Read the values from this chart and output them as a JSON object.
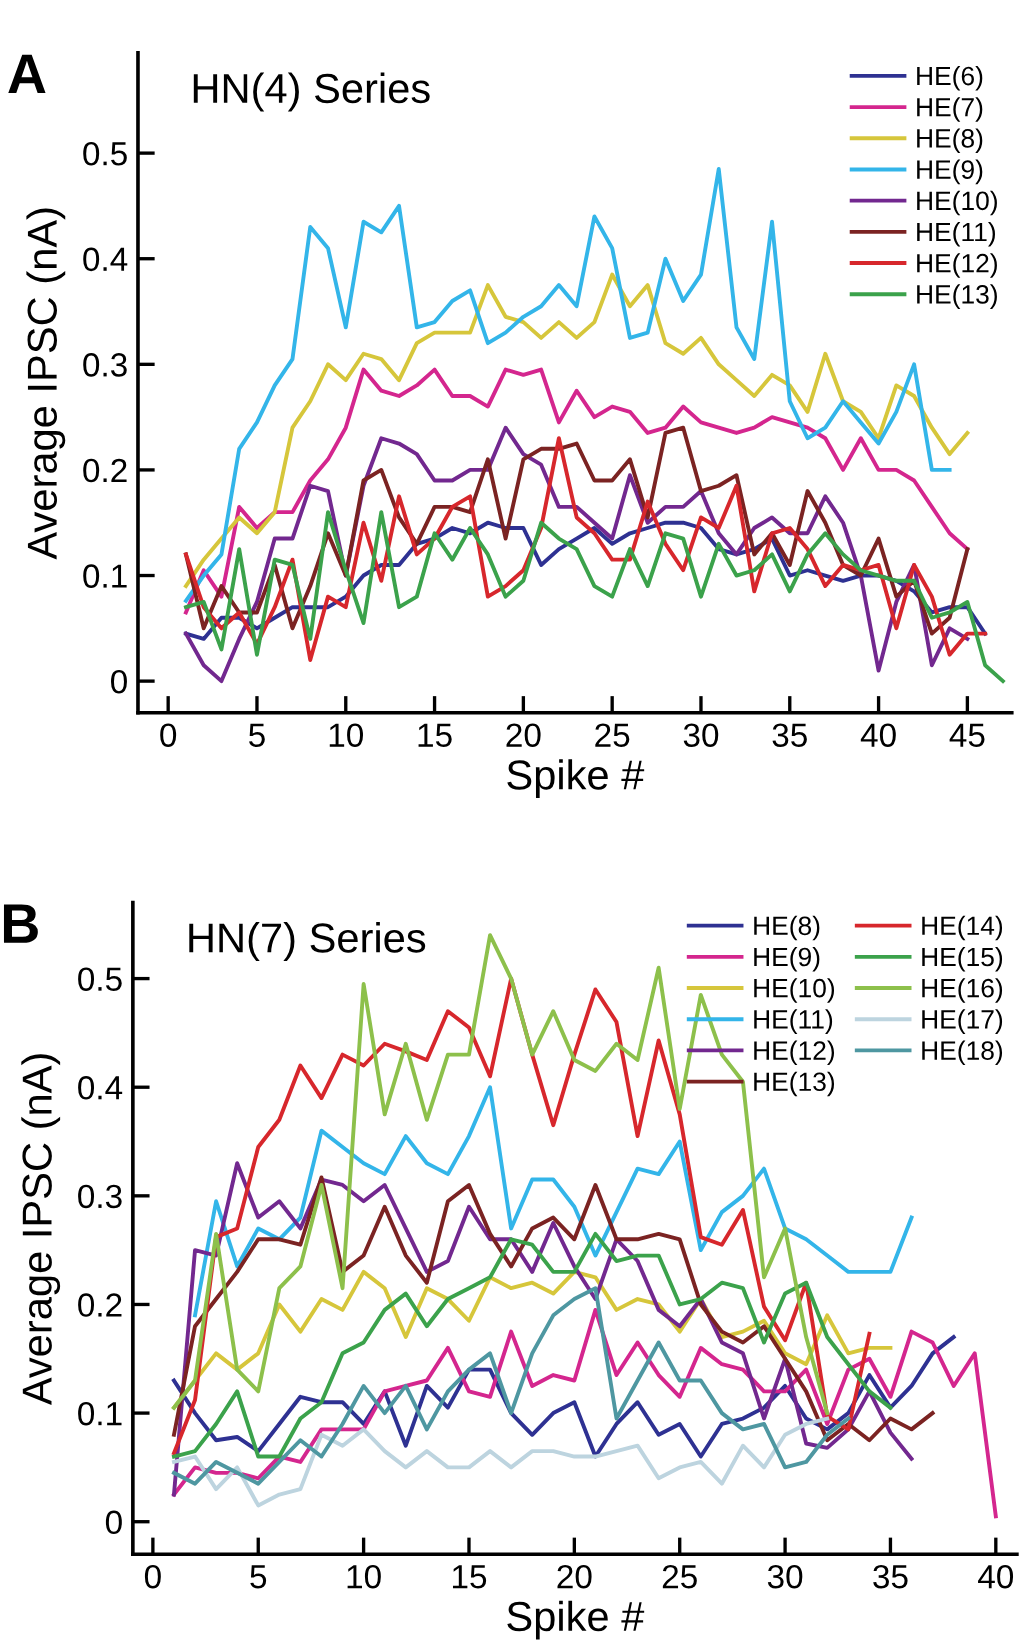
{
  "chart_data": [
    {
      "type": "line",
      "title": "A",
      "subtitle": "HN(4) Series",
      "xlabel": "Spike #",
      "ylabel": "Average IPSC (nA)",
      "xlim": [
        -1.7,
        47.5
      ],
      "ylim": [
        -0.03,
        0.595
      ],
      "xticks": [
        0,
        5,
        10,
        15,
        20,
        25,
        30,
        35,
        40,
        45
      ],
      "yticks": [
        0,
        0.1,
        0.2,
        0.3,
        0.4,
        0.5
      ],
      "grid": false,
      "legend": "top right",
      "marker": "none",
      "line_style": "solid",
      "x": [
        1,
        2,
        3,
        4,
        5,
        6,
        7,
        8,
        9,
        10,
        11,
        12,
        13,
        14,
        15,
        16,
        17,
        18,
        19,
        20,
        21,
        22,
        23,
        24,
        25,
        26,
        27,
        28,
        29,
        30,
        31,
        32,
        33,
        34,
        35,
        36,
        37,
        38,
        39,
        40,
        41,
        42,
        43,
        44,
        45,
        46,
        47
      ],
      "series": [
        {
          "name": "HE(6)",
          "color": "#2e3192",
          "values": [
            0.045,
            0.04,
            0.06,
            0.06,
            0.05,
            0.06,
            0.07,
            0.07,
            0.07,
            0.08,
            0.1,
            0.11,
            0.11,
            0.13,
            0.135,
            0.145,
            0.14,
            0.15,
            0.145,
            0.145,
            0.11,
            0.125,
            0.135,
            0.145,
            0.13,
            0.14,
            0.145,
            0.15,
            0.15,
            0.145,
            0.125,
            0.12,
            0.125,
            0.135,
            0.1,
            0.105,
            0.1,
            0.095,
            0.1,
            0.1,
            0.095,
            0.085,
            0.065,
            0.07,
            0.07,
            0.045,
            null
          ]
        },
        {
          "name": "HE(7)",
          "color": "#d4268e",
          "values": [
            0.065,
            0.105,
            0.08,
            0.165,
            0.145,
            0.16,
            0.16,
            0.19,
            0.21,
            0.24,
            0.295,
            0.275,
            0.27,
            0.28,
            0.295,
            0.27,
            0.27,
            0.26,
            0.295,
            0.29,
            0.295,
            0.245,
            0.275,
            0.25,
            0.26,
            0.255,
            0.235,
            0.24,
            0.26,
            0.245,
            0.24,
            0.235,
            0.24,
            0.25,
            0.245,
            0.24,
            0.23,
            0.2,
            0.23,
            0.2,
            0.2,
            0.19,
            0.165,
            0.14,
            0.125,
            null,
            null
          ]
        },
        {
          "name": "HE(8)",
          "color": "#d6c63b",
          "values": [
            0.09,
            0.115,
            0.135,
            0.155,
            0.14,
            0.16,
            0.24,
            0.265,
            0.3,
            0.285,
            0.31,
            0.305,
            0.285,
            0.32,
            0.33,
            0.33,
            0.33,
            0.375,
            0.345,
            0.34,
            0.325,
            0.34,
            0.325,
            0.34,
            0.385,
            0.355,
            0.375,
            0.32,
            0.31,
            0.325,
            0.3,
            0.285,
            0.27,
            0.29,
            0.28,
            0.255,
            0.31,
            0.265,
            0.255,
            0.23,
            0.28,
            0.27,
            0.24,
            0.215,
            0.235,
            null,
            null
          ]
        },
        {
          "name": "HE(9)",
          "color": "#33b5e9",
          "values": [
            0.076,
            0.1,
            0.12,
            0.22,
            0.245,
            0.28,
            0.305,
            0.43,
            0.41,
            0.335,
            0.435,
            0.425,
            0.45,
            0.335,
            0.34,
            0.36,
            0.37,
            0.32,
            0.33,
            0.345,
            0.355,
            0.375,
            0.355,
            0.44,
            0.41,
            0.325,
            0.33,
            0.4,
            0.36,
            0.385,
            0.485,
            0.335,
            0.305,
            0.435,
            0.265,
            0.23,
            0.24,
            0.265,
            0.245,
            0.225,
            0.255,
            0.3,
            0.2,
            0.2,
            null,
            null,
            null
          ]
        },
        {
          "name": "HE(10)",
          "color": "#72288f",
          "values": [
            0.045,
            0.015,
            0.0,
            0.04,
            0.075,
            0.135,
            0.135,
            0.185,
            0.18,
            0.1,
            0.185,
            0.23,
            0.225,
            0.215,
            0.19,
            0.19,
            0.2,
            0.2,
            0.24,
            0.215,
            0.205,
            0.165,
            0.165,
            0.15,
            0.135,
            0.195,
            0.15,
            0.165,
            0.165,
            0.18,
            0.14,
            0.12,
            0.145,
            0.155,
            0.14,
            0.14,
            0.175,
            0.15,
            0.1,
            0.01,
            0.075,
            0.11,
            0.015,
            0.05,
            0.04,
            null,
            null
          ]
        },
        {
          "name": "HE(11)",
          "color": "#7b2322",
          "values": [
            0.12,
            0.05,
            0.09,
            0.065,
            0.065,
            0.11,
            0.05,
            0.09,
            0.14,
            0.1,
            0.19,
            0.2,
            0.155,
            0.13,
            0.165,
            0.165,
            0.16,
            0.21,
            0.135,
            0.21,
            0.22,
            0.22,
            0.225,
            0.19,
            0.19,
            0.21,
            0.155,
            0.235,
            0.24,
            0.18,
            0.185,
            0.195,
            0.12,
            0.14,
            0.11,
            0.18,
            0.15,
            0.11,
            0.1,
            0.135,
            0.08,
            0.095,
            0.045,
            0.06,
            0.125,
            null,
            null
          ]
        },
        {
          "name": "HE(12)",
          "color": "#d7272c",
          "values": [
            0.12,
            0.07,
            0.05,
            0.065,
            0.035,
            0.07,
            0.115,
            0.02,
            0.08,
            0.07,
            0.15,
            0.095,
            0.175,
            0.12,
            0.135,
            0.165,
            0.175,
            0.08,
            0.09,
            0.105,
            0.145,
            0.23,
            0.155,
            0.14,
            0.115,
            0.115,
            0.17,
            0.13,
            0.105,
            0.155,
            0.145,
            0.185,
            0.085,
            0.14,
            0.145,
            0.125,
            0.09,
            0.11,
            0.105,
            0.11,
            0.05,
            0.11,
            0.08,
            0.025,
            0.045,
            0.045,
            null
          ]
        },
        {
          "name": "HE(13)",
          "color": "#3ba24b",
          "values": [
            0.07,
            0.075,
            0.03,
            0.125,
            0.025,
            0.115,
            0.11,
            0.04,
            0.16,
            0.105,
            0.055,
            0.16,
            0.07,
            0.08,
            0.14,
            0.115,
            0.145,
            0.12,
            0.08,
            0.095,
            0.15,
            0.135,
            0.125,
            0.09,
            0.08,
            0.125,
            0.09,
            0.14,
            0.135,
            0.08,
            0.13,
            0.1,
            0.105,
            0.12,
            0.085,
            0.12,
            0.14,
            0.12,
            0.105,
            0.1,
            0.095,
            0.095,
            0.06,
            0.065,
            0.075,
            0.015,
            0.0
          ]
        }
      ]
    },
    {
      "type": "line",
      "title": "B",
      "subtitle": "HN(7) Series",
      "xlabel": "Spike #",
      "ylabel": "Average IPSC (nA)",
      "xlim": [
        -0.95,
        41
      ],
      "ylim": [
        -0.03,
        0.57
      ],
      "xticks": [
        0,
        5,
        10,
        15,
        20,
        25,
        30,
        35,
        40
      ],
      "yticks": [
        0,
        0.1,
        0.2,
        0.3,
        0.4,
        0.5
      ],
      "grid": false,
      "legend": "top right",
      "marker": "none",
      "line_style": "solid",
      "x": [
        1,
        2,
        3,
        4,
        5,
        6,
        7,
        8,
        9,
        10,
        11,
        12,
        13,
        14,
        15,
        16,
        17,
        18,
        19,
        20,
        21,
        22,
        23,
        24,
        25,
        26,
        27,
        28,
        29,
        30,
        31,
        32,
        33,
        34,
        35,
        36,
        37,
        38,
        39,
        40
      ],
      "series": [
        {
          "name": "HE(8)",
          "color": "#2e3192",
          "values": [
            0.13,
            0.1,
            0.075,
            0.078,
            0.065,
            0.09,
            0.115,
            0.11,
            0.11,
            0.09,
            0.12,
            0.07,
            0.125,
            0.105,
            0.14,
            0.14,
            0.1,
            0.08,
            0.1,
            0.11,
            0.06,
            0.09,
            0.11,
            0.08,
            0.09,
            0.06,
            0.09,
            0.095,
            0.105,
            0.125,
            0.095,
            0.085,
            0.1,
            0.135,
            0.105,
            0.125,
            0.155,
            0.17,
            null,
            null
          ]
        },
        {
          "name": "HE(9)",
          "color": "#d4268e",
          "values": [
            0.025,
            0.05,
            0.045,
            0.045,
            0.04,
            0.06,
            0.055,
            0.085,
            0.085,
            0.085,
            0.12,
            0.125,
            0.13,
            0.16,
            0.12,
            0.115,
            0.175,
            0.125,
            0.135,
            0.13,
            0.195,
            0.135,
            0.165,
            0.135,
            0.115,
            0.16,
            0.145,
            0.14,
            0.12,
            0.12,
            0.14,
            0.09,
            0.14,
            0.15,
            0.115,
            0.175,
            0.165,
            0.125,
            0.155,
            0.005
          ]
        },
        {
          "name": "HE(10)",
          "color": "#d6c63b",
          "values": [
            0.105,
            0.13,
            0.155,
            0.14,
            0.155,
            0.2,
            0.175,
            0.205,
            0.195,
            0.23,
            0.215,
            0.17,
            0.215,
            0.205,
            0.185,
            0.225,
            0.215,
            0.22,
            0.21,
            0.23,
            0.225,
            0.195,
            0.205,
            0.2,
            0.175,
            0.205,
            0.17,
            0.175,
            0.185,
            0.155,
            0.145,
            0.19,
            0.155,
            0.16,
            0.16,
            null,
            null,
            null,
            null,
            null
          ]
        },
        {
          "name": "HE(11)",
          "color": "#33b5e9",
          "values": [
            null,
            0.19,
            0.295,
            0.235,
            0.27,
            0.26,
            0.28,
            0.36,
            0.345,
            0.33,
            0.32,
            0.355,
            0.33,
            0.32,
            0.355,
            0.4,
            0.27,
            0.315,
            0.315,
            0.29,
            0.245,
            0.285,
            0.325,
            0.32,
            0.35,
            0.25,
            0.285,
            0.3,
            0.325,
            0.27,
            0.26,
            0.245,
            0.23,
            0.23,
            0.23,
            0.28,
            null,
            null,
            null,
            null
          ]
        },
        {
          "name": "HE(12)",
          "color": "#72288f",
          "values": [
            0.025,
            0.25,
            0.245,
            0.33,
            0.28,
            0.295,
            0.27,
            0.315,
            0.31,
            0.295,
            0.31,
            0.27,
            0.23,
            0.24,
            0.29,
            0.26,
            0.26,
            0.23,
            0.275,
            0.235,
            0.205,
            0.26,
            0.24,
            0.195,
            0.18,
            0.205,
            0.165,
            0.155,
            0.095,
            0.15,
            0.072,
            0.068,
            0.085,
            0.12,
            0.082,
            0.058,
            null,
            null,
            null,
            null
          ]
        },
        {
          "name": "HE(13)",
          "color": "#7b2322",
          "values": [
            0.08,
            0.18,
            0.205,
            0.23,
            0.26,
            0.26,
            0.255,
            0.317,
            0.23,
            0.245,
            0.29,
            0.245,
            0.22,
            0.295,
            0.31,
            0.265,
            0.235,
            0.27,
            0.28,
            0.26,
            0.31,
            0.26,
            0.26,
            0.265,
            0.26,
            0.2,
            0.175,
            0.165,
            0.18,
            0.15,
            0.12,
            0.075,
            0.09,
            0.075,
            0.095,
            0.085,
            0.1,
            null,
            null,
            null
          ]
        },
        {
          "name": "HE(14)",
          "color": "#d7272c",
          "values": [
            0.063,
            0.112,
            0.262,
            0.27,
            0.345,
            0.37,
            0.42,
            0.39,
            0.43,
            0.42,
            0.44,
            0.433,
            0.425,
            0.47,
            0.455,
            0.41,
            0.5,
            0.43,
            0.365,
            0.43,
            0.49,
            0.46,
            0.355,
            0.443,
            0.375,
            0.262,
            0.255,
            0.287,
            0.198,
            0.167,
            0.22,
            0.097,
            0.085,
            0.173,
            null,
            null,
            null,
            null,
            null,
            null
          ]
        },
        {
          "name": "HE(15)",
          "color": "#3ba24b",
          "values": [
            0.06,
            0.065,
            0.09,
            0.12,
            0.06,
            0.06,
            0.095,
            0.11,
            0.155,
            0.165,
            0.195,
            0.21,
            0.18,
            0.205,
            0.215,
            0.225,
            0.26,
            0.255,
            0.23,
            0.23,
            0.265,
            0.24,
            0.245,
            0.245,
            0.2,
            0.205,
            0.22,
            0.215,
            0.165,
            0.21,
            0.22,
            0.17,
            0.145,
            0.12,
            0.105,
            null,
            null,
            null,
            null,
            null
          ]
        },
        {
          "name": "HE(16)",
          "color": "#8dc04b",
          "values": [
            0.105,
            0.13,
            0.265,
            0.14,
            0.12,
            0.215,
            0.235,
            0.31,
            0.215,
            0.495,
            0.375,
            0.44,
            0.37,
            0.43,
            0.43,
            0.54,
            0.5,
            0.43,
            0.47,
            0.425,
            0.415,
            0.44,
            0.425,
            0.51,
            0.38,
            0.485,
            0.43,
            0.405,
            0.225,
            0.27,
            0.17,
            0.1,
            null,
            null,
            null,
            null,
            null,
            null,
            null,
            null
          ]
        },
        {
          "name": "HE(17)",
          "color": "#bdd4df",
          "values": [
            0.055,
            0.06,
            0.03,
            0.05,
            0.015,
            0.025,
            0.03,
            0.08,
            0.07,
            0.085,
            0.065,
            0.05,
            0.065,
            0.05,
            0.05,
            0.065,
            0.05,
            0.065,
            0.065,
            0.06,
            0.06,
            0.065,
            0.07,
            0.04,
            0.05,
            0.055,
            0.035,
            0.07,
            0.05,
            0.08,
            0.09,
            0.095,
            null,
            null,
            null,
            null,
            null,
            null,
            null,
            null
          ]
        },
        {
          "name": "HE(18)",
          "color": "#4e97a1",
          "values": [
            0.045,
            0.035,
            0.055,
            0.045,
            0.035,
            0.055,
            0.075,
            0.06,
            0.09,
            0.125,
            0.1,
            0.125,
            0.085,
            0.12,
            0.14,
            0.155,
            0.1,
            0.155,
            0.19,
            0.205,
            0.215,
            0.095,
            0.13,
            0.165,
            0.13,
            0.13,
            0.1,
            0.085,
            0.09,
            0.05,
            0.055,
            0.08,
            0.095,
            null,
            null,
            null,
            null,
            null,
            null,
            null
          ]
        }
      ]
    }
  ]
}
